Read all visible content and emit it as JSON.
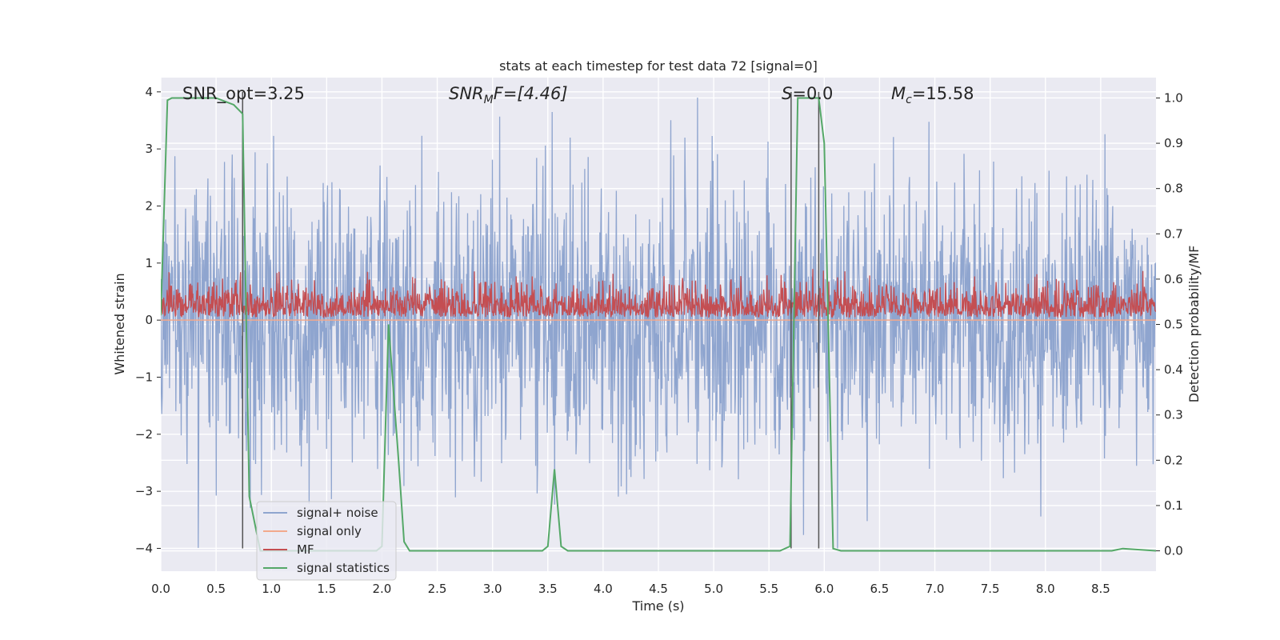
{
  "chart_data": {
    "type": "line",
    "title": "stats at each timestep for test data 72 [signal=0]",
    "xlabel": "Time (s)",
    "ylabel": "Whitened strain",
    "ylabel_right": "Detection probability/MF",
    "xlim": [
      0.0,
      9.0
    ],
    "ylim": [
      -4.4,
      4.25
    ],
    "ylim_right": [
      -0.045,
      1.045
    ],
    "xticks": [
      0.0,
      0.5,
      1.0,
      1.5,
      2.0,
      2.5,
      3.0,
      3.5,
      4.0,
      4.5,
      5.0,
      5.5,
      6.0,
      6.5,
      7.0,
      7.5,
      8.0,
      8.5
    ],
    "xtick_labels": [
      "0.0",
      "0.5",
      "1.0",
      "1.5",
      "2.0",
      "2.5",
      "3.0",
      "3.5",
      "4.0",
      "4.5",
      "5.0",
      "5.5",
      "6.0",
      "6.5",
      "7.0",
      "7.5",
      "8.0",
      "8.5"
    ],
    "yticks": [
      -4,
      -3,
      -2,
      -1,
      0,
      1,
      2,
      3,
      4
    ],
    "ytick_labels": [
      "−4",
      "−3",
      "−2",
      "−1",
      "0",
      "1",
      "2",
      "3",
      "4"
    ],
    "yticks_right": [
      0.0,
      0.1,
      0.2,
      0.3,
      0.4,
      0.5,
      0.6,
      0.7,
      0.8,
      0.9,
      1.0
    ],
    "ytick_labels_right": [
      "0.0",
      "0.1",
      "0.2",
      "0.3",
      "0.4",
      "0.5",
      "0.6",
      "0.7",
      "0.8",
      "0.9",
      "1.0"
    ],
    "grid": true,
    "legend_position": "lower-left",
    "annotations": {
      "snr_opt": "SNR_opt=3.25",
      "snr_mf_prefix": "SNR",
      "snr_mf_sub": "M",
      "snr_mf_rest": "F=[4.46]",
      "s_prefix": "S",
      "s_rest": "=0.0",
      "mc_prefix": "M",
      "mc_sub": "c",
      "mc_rest": "=15.58"
    },
    "series": [
      {
        "name": "signal+ noise",
        "color": "#8fa5cf",
        "axis": "left",
        "style": "dense-noise",
        "n_samples": 2048,
        "typical_envelope": [
          -2.2,
          2.2
        ],
        "extremes": [
          -4.0,
          3.9
        ]
      },
      {
        "name": "signal only",
        "color": "#f2a98c",
        "axis": "left",
        "x": [
          0.0,
          9.0
        ],
        "y": [
          0.0,
          0.0
        ]
      },
      {
        "name": "MF",
        "color": "#c44e52",
        "axis": "left",
        "style": "dense-noise",
        "n_samples": 2048,
        "baseline": 0.05,
        "typical_peak": 0.65,
        "extremes": [
          0.05,
          1.0
        ]
      },
      {
        "name": "signal statistics",
        "color": "#55a868",
        "axis": "right",
        "x": [
          0.0,
          0.06,
          0.1,
          0.15,
          0.5,
          0.66,
          0.74,
          0.8,
          0.9,
          1.0,
          1.95,
          2.0,
          2.06,
          2.15,
          2.2,
          2.25,
          3.45,
          3.5,
          3.56,
          3.62,
          3.68,
          5.6,
          5.69,
          5.76,
          5.95,
          6.0,
          6.08,
          6.15,
          8.5,
          8.6,
          8.7,
          9.0
        ],
        "y": [
          0.52,
          0.995,
          1.0,
          1.0,
          1.0,
          0.985,
          0.965,
          0.12,
          0.0,
          0.0,
          0.0,
          0.01,
          0.5,
          0.2,
          0.02,
          0.0,
          0.0,
          0.01,
          0.18,
          0.01,
          0.0,
          0.0,
          0.01,
          1.0,
          1.0,
          0.9,
          0.005,
          0.0,
          0.0,
          0.0,
          0.005,
          0.0
        ]
      }
    ],
    "vertical_lines": [
      0.74,
      5.7,
      5.95
    ]
  }
}
